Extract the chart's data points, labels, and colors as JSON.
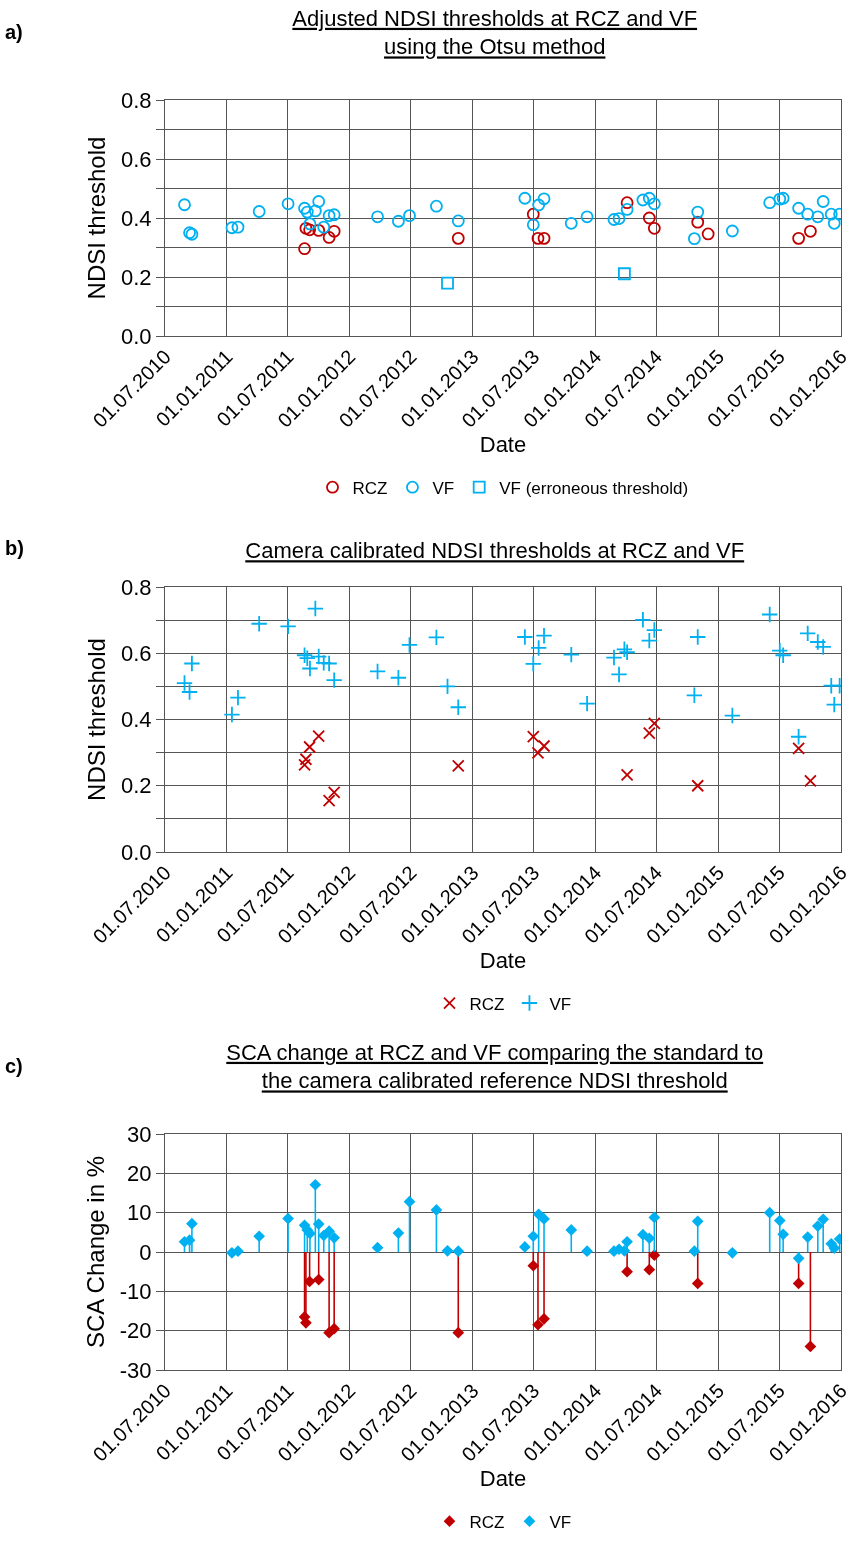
{
  "chart_data": [
    {
      "type": "scatter",
      "title": "Adjusted NDSI thresholds at RCZ and VF\nusing the Otsu method",
      "xlabel": "Date",
      "ylabel": "NDSI threshold",
      "annotations": [
        "a)"
      ],
      "xlim": [
        "2010-07-01",
        "2016-01-01"
      ],
      "xticks": [
        {
          "value": "2010-07-01",
          "label": "01.07.2010"
        },
        {
          "value": "2011-01-01",
          "label": "01.01.2011"
        },
        {
          "value": "2011-07-01",
          "label": "01.07.2011"
        },
        {
          "value": "2012-01-01",
          "label": "01.01.2012"
        },
        {
          "value": "2012-07-01",
          "label": "01.07.2012"
        },
        {
          "value": "2013-01-01",
          "label": "01.01.2013"
        },
        {
          "value": "2013-07-01",
          "label": "01.07.2013"
        },
        {
          "value": "2014-01-01",
          "label": "01.01.2014"
        },
        {
          "value": "2014-07-01",
          "label": "01.07.2014"
        },
        {
          "value": "2015-01-01",
          "label": "01.01.2015"
        },
        {
          "value": "2015-07-01",
          "label": "01.07.2015"
        },
        {
          "value": "2016-01-01",
          "label": "01.01.2016"
        }
      ],
      "ylim": [
        0,
        0.8
      ],
      "yticks": [
        {
          "value": 0,
          "label": "0.0"
        },
        {
          "value": 0.1,
          "label": null
        },
        {
          "value": 0.2,
          "label": "0.2"
        },
        {
          "value": 0.3,
          "label": null
        },
        {
          "value": 0.4,
          "label": "0.4"
        },
        {
          "value": 0.5,
          "label": null
        },
        {
          "value": 0.6,
          "label": "0.6"
        },
        {
          "value": 0.7,
          "label": null
        },
        {
          "value": 0.8,
          "label": "0.8"
        }
      ],
      "grid": true,
      "legend": "bottom",
      "marker": "circle",
      "series": [
        {
          "name": "RCZ",
          "color": "#c00000",
          "x": [
            "2011-08-20",
            "2011-08-24",
            "2011-09-04",
            "2011-10-01",
            "2011-11-01",
            "2011-11-16",
            "2012-11-19",
            "2013-06-30",
            "2013-07-14",
            "2013-08-01",
            "2014-04-05",
            "2014-06-10",
            "2014-06-25",
            "2014-11-01",
            "2014-12-02",
            "2015-08-28",
            "2015-10-02"
          ],
          "values": [
            0.296,
            0.365,
            0.36,
            0.358,
            0.334,
            0.355,
            0.331,
            0.413,
            0.331,
            0.331,
            0.452,
            0.4,
            0.365,
            0.386,
            0.346,
            0.331,
            0.355
          ]
        },
        {
          "name": "VF",
          "color": "#00b0f0",
          "x": [
            "2010-08-28",
            "2010-09-12",
            "2010-09-19",
            "2011-01-16",
            "2011-02-03",
            "2011-04-07",
            "2011-07-02",
            "2011-08-20",
            "2011-08-28",
            "2011-09-05",
            "2011-09-21",
            "2011-10-01",
            "2011-10-16",
            "2011-11-01",
            "2011-11-16",
            "2012-03-24",
            "2012-05-25",
            "2012-06-27",
            "2012-09-15",
            "2012-11-19",
            "2013-06-05",
            "2013-06-30",
            "2013-07-16",
            "2013-08-01",
            "2013-10-21",
            "2013-12-07",
            "2014-02-25",
            "2014-03-12",
            "2014-04-05",
            "2014-05-22",
            "2014-06-10",
            "2014-06-25",
            "2014-10-22",
            "2014-11-01",
            "2015-02-12",
            "2015-06-03",
            "2015-07-03",
            "2015-07-13",
            "2015-08-28",
            "2015-09-24",
            "2015-10-24",
            "2015-11-09",
            "2015-12-03",
            "2015-12-12",
            "2015-12-28"
          ],
          "values": [
            0.445,
            0.35,
            0.345,
            0.367,
            0.369,
            0.422,
            0.448,
            0.433,
            0.42,
            0.38,
            0.424,
            0.456,
            0.369,
            0.408,
            0.411,
            0.404,
            0.389,
            0.408,
            0.44,
            0.39,
            0.467,
            0.377,
            0.444,
            0.465,
            0.382,
            0.404,
            0.395,
            0.398,
            0.429,
            0.461,
            0.467,
            0.448,
            0.33,
            0.42,
            0.356,
            0.452,
            0.464,
            0.467,
            0.433,
            0.413,
            0.404,
            0.456,
            0.413,
            0.382,
            0.413
          ]
        },
        {
          "name": "VF (erroneous threshold)",
          "color": "#00b0f0",
          "marker": "square",
          "x": [
            "2012-10-18",
            "2014-03-28"
          ],
          "values": [
            0.179,
            0.211
          ]
        }
      ]
    },
    {
      "type": "scatter",
      "title": "Camera calibrated NDSI thresholds at RCZ and VF",
      "xlabel": "Date",
      "ylabel": "NDSI threshold",
      "annotations": [
        "b)"
      ],
      "xlim": [
        "2010-07-01",
        "2016-01-01"
      ],
      "xticks": [
        {
          "value": "2010-07-01",
          "label": "01.07.2010"
        },
        {
          "value": "2011-01-01",
          "label": "01.01.2011"
        },
        {
          "value": "2011-07-01",
          "label": "01.07.2011"
        },
        {
          "value": "2012-01-01",
          "label": "01.01.2012"
        },
        {
          "value": "2012-07-01",
          "label": "01.07.2012"
        },
        {
          "value": "2013-01-01",
          "label": "01.01.2013"
        },
        {
          "value": "2013-07-01",
          "label": "01.07.2013"
        },
        {
          "value": "2014-01-01",
          "label": "01.01.2014"
        },
        {
          "value": "2014-07-01",
          "label": "01.07.2014"
        },
        {
          "value": "2015-01-01",
          "label": "01.01.2015"
        },
        {
          "value": "2015-07-01",
          "label": "01.07.2015"
        },
        {
          "value": "2016-01-01",
          "label": "01.01.2016"
        }
      ],
      "ylim": [
        0,
        0.8
      ],
      "yticks": [
        {
          "value": 0,
          "label": "0.0"
        },
        {
          "value": 0.1,
          "label": null
        },
        {
          "value": 0.2,
          "label": "0.2"
        },
        {
          "value": 0.3,
          "label": null
        },
        {
          "value": 0.4,
          "label": "0.4"
        },
        {
          "value": 0.5,
          "label": null
        },
        {
          "value": 0.6,
          "label": "0.6"
        },
        {
          "value": 0.7,
          "label": null
        },
        {
          "value": 0.8,
          "label": "0.8"
        }
      ],
      "grid": true,
      "legend": "bottom",
      "series": [
        {
          "name": "RCZ",
          "color": "#c00000",
          "marker": "x",
          "x": [
            "2011-08-20",
            "2011-08-24",
            "2011-09-04",
            "2011-10-01",
            "2011-11-01",
            "2011-11-16",
            "2012-11-19",
            "2013-06-30",
            "2013-07-14",
            "2013-08-01",
            "2014-04-05",
            "2014-06-10",
            "2014-06-25",
            "2014-11-01",
            "2015-08-28",
            "2015-10-02"
          ],
          "values": [
            0.263,
            0.28,
            0.317,
            0.35,
            0.155,
            0.18,
            0.26,
            0.348,
            0.299,
            0.32,
            0.233,
            0.359,
            0.388,
            0.2,
            0.313,
            0.215
          ]
        },
        {
          "name": "VF",
          "color": "#00b0f0",
          "marker": "cross",
          "x": [
            "2010-08-28",
            "2010-09-12",
            "2010-09-19",
            "2011-01-16",
            "2011-02-03",
            "2011-04-07",
            "2011-07-02",
            "2011-08-20",
            "2011-08-28",
            "2011-09-05",
            "2011-09-21",
            "2011-10-01",
            "2011-10-16",
            "2011-11-01",
            "2011-11-16",
            "2012-03-24",
            "2012-05-25",
            "2012-06-27",
            "2012-09-15",
            "2012-10-18",
            "2012-11-19",
            "2013-06-05",
            "2013-06-30",
            "2013-07-16",
            "2013-08-01",
            "2013-10-21",
            "2013-12-07",
            "2014-02-25",
            "2014-03-12",
            "2014-03-28",
            "2014-04-05",
            "2014-05-22",
            "2014-06-10",
            "2014-06-25",
            "2014-10-22",
            "2014-11-01",
            "2015-02-12",
            "2015-06-03",
            "2015-07-03",
            "2015-07-13",
            "2015-08-28",
            "2015-09-24",
            "2015-10-24",
            "2015-11-09",
            "2015-12-03",
            "2015-12-12",
            "2015-12-28"
          ],
          "values": [
            0.51,
            0.483,
            0.569,
            0.415,
            0.466,
            0.689,
            0.681,
            0.594,
            0.585,
            0.554,
            0.735,
            0.59,
            0.571,
            0.569,
            0.519,
            0.545,
            0.526,
            0.625,
            0.648,
            0.5,
            0.437,
            0.649,
            0.568,
            0.616,
            0.653,
            0.596,
            0.448,
            0.587,
            0.536,
            0.612,
            0.603,
            0.701,
            0.638,
            0.67,
            0.473,
            0.649,
            0.412,
            0.717,
            0.608,
            0.594,
            0.348,
            0.66,
            0.634,
            0.619,
            0.502,
            0.445,
            0.502
          ]
        }
      ]
    },
    {
      "type": "lollipop",
      "title": "SCA change at RCZ and VF comparing the standard to\nthe camera calibrated reference NDSI threshold",
      "xlabel": "Date",
      "ylabel": "SCA Change in %",
      "annotations": [
        "c)"
      ],
      "xlim": [
        "2010-07-01",
        "2016-01-01"
      ],
      "xticks": [
        {
          "value": "2010-07-01",
          "label": "01.07.2010"
        },
        {
          "value": "2011-01-01",
          "label": "01.01.2011"
        },
        {
          "value": "2011-07-01",
          "label": "01.07.2011"
        },
        {
          "value": "2012-01-01",
          "label": "01.01.2012"
        },
        {
          "value": "2012-07-01",
          "label": "01.07.2012"
        },
        {
          "value": "2013-01-01",
          "label": "01.01.2013"
        },
        {
          "value": "2013-07-01",
          "label": "01.07.2013"
        },
        {
          "value": "2014-01-01",
          "label": "01.01.2014"
        },
        {
          "value": "2014-07-01",
          "label": "01.07.2014"
        },
        {
          "value": "2015-01-01",
          "label": "01.01.2015"
        },
        {
          "value": "2015-07-01",
          "label": "01.07.2015"
        },
        {
          "value": "2016-01-01",
          "label": "01.01.2016"
        }
      ],
      "ylim": [
        -30,
        30
      ],
      "yticks": [
        -30,
        -20,
        -10,
        0,
        10,
        20,
        30
      ],
      "grid": true,
      "legend": "bottom",
      "marker": "diamond",
      "series": [
        {
          "name": "RCZ",
          "color": "#c00000",
          "x": [
            "2011-08-20",
            "2011-08-24",
            "2011-09-04",
            "2011-10-01",
            "2011-11-01",
            "2011-11-16",
            "2012-11-19",
            "2013-06-30",
            "2013-07-14",
            "2013-08-01",
            "2014-04-05",
            "2014-06-10",
            "2014-06-25",
            "2014-11-01",
            "2015-08-28",
            "2015-10-02"
          ],
          "values": [
            -16.5,
            -18,
            -7.5,
            -7,
            -20.5,
            -19.5,
            -20.5,
            -3.5,
            -18.5,
            -17,
            -5,
            -4.5,
            -0.8,
            -8,
            -8,
            -24
          ]
        },
        {
          "name": "VF",
          "color": "#00b0f0",
          "x": [
            "2010-08-28",
            "2010-09-12",
            "2010-09-19",
            "2011-01-16",
            "2011-02-03",
            "2011-04-07",
            "2011-07-02",
            "2011-08-20",
            "2011-08-28",
            "2011-09-05",
            "2011-09-21",
            "2011-10-01",
            "2011-10-16",
            "2011-11-01",
            "2011-11-16",
            "2012-03-24",
            "2012-05-25",
            "2012-06-27",
            "2012-09-15",
            "2012-10-18",
            "2012-11-19",
            "2013-06-05",
            "2013-06-30",
            "2013-07-16",
            "2013-08-01",
            "2013-10-21",
            "2013-12-07",
            "2014-02-25",
            "2014-03-12",
            "2014-03-28",
            "2014-04-05",
            "2014-05-22",
            "2014-06-10",
            "2014-06-25",
            "2014-10-22",
            "2014-11-01",
            "2015-02-12",
            "2015-06-03",
            "2015-07-03",
            "2015-07-13",
            "2015-08-28",
            "2015-09-24",
            "2015-10-24",
            "2015-11-09",
            "2015-12-03",
            "2015-12-12",
            "2015-12-28"
          ],
          "values": [
            2.6,
            3,
            7.2,
            -0.2,
            0.2,
            4,
            8.5,
            6.8,
            5.6,
            4.7,
            17.1,
            7.1,
            4.2,
            5.3,
            3.6,
            1.1,
            4.8,
            12.8,
            10.7,
            0.3,
            0.2,
            1.3,
            4,
            9.6,
            8.4,
            5.6,
            0.2,
            0.2,
            0.7,
            0.3,
            2.6,
            4.4,
            3.5,
            8.8,
            0.2,
            7.8,
            -0.2,
            10,
            8,
            4.5,
            -1.6,
            3.8,
            6.6,
            8.3,
            2.1,
            1,
            3.3
          ]
        }
      ]
    }
  ]
}
